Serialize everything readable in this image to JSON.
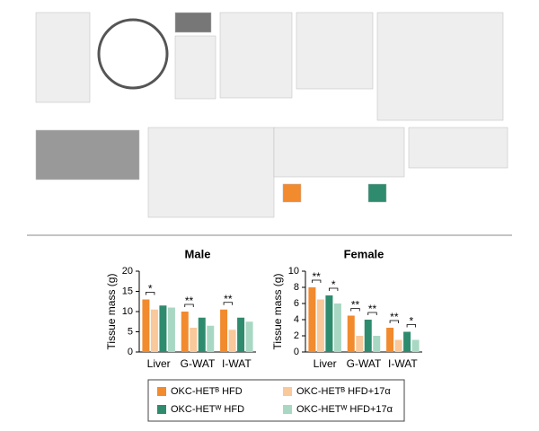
{
  "chart_data": [
    {
      "type": "bar",
      "title": "Male",
      "y_label": "Tissue mass (g)",
      "categories": [
        "Liver",
        "G-WAT",
        "I-WAT"
      ],
      "ylim": [
        0,
        20
      ],
      "yticks": [
        0,
        5,
        10,
        15,
        20
      ],
      "series": [
        {
          "name": "OKC-HETᴮ HFD",
          "color": "#f28a2e",
          "values": [
            13,
            10,
            10.5
          ]
        },
        {
          "name": "OKC-HETᴮ HFD+17α",
          "color": "#f9c89b",
          "values": [
            10.5,
            6,
            5.5
          ]
        },
        {
          "name": "OKC-HETᵂ HFD",
          "color": "#2e8b6e",
          "values": [
            11.5,
            8.5,
            8.5
          ]
        },
        {
          "name": "OKC-HETᵂ HFD+17α",
          "color": "#a8d8c4",
          "values": [
            11,
            6.5,
            7.5
          ]
        }
      ],
      "annotations": [
        "*",
        "**",
        "**"
      ]
    },
    {
      "type": "bar",
      "title": "Female",
      "y_label": "Tissue mass (g)",
      "categories": [
        "Liver",
        "G-WAT",
        "I-WAT"
      ],
      "ylim": [
        0,
        10
      ],
      "yticks": [
        0,
        2,
        4,
        6,
        8,
        10
      ],
      "series": [
        {
          "color": "#f28a2e",
          "values": [
            8,
            4.5,
            3
          ]
        },
        {
          "color": "#f9c89b",
          "values": [
            6.5,
            2,
            1.5
          ]
        },
        {
          "color": "#2e8b6e",
          "values": [
            7,
            4,
            2.5
          ]
        },
        {
          "color": "#a8d8c4",
          "values": [
            6,
            2,
            1.5
          ]
        }
      ],
      "annotations": [
        "**",
        "*",
        "**",
        "**",
        "**",
        "*"
      ]
    }
  ]
}
